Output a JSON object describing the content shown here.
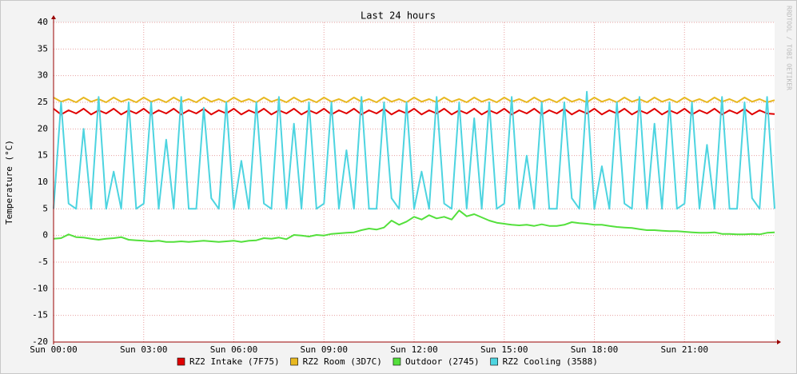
{
  "chart_data": {
    "type": "line",
    "title": "Last 24 hours",
    "y_label": "Temperature (°C)",
    "watermark": "RRDTOOL / TOBI OETIKER",
    "x": [
      0,
      0.25,
      0.5,
      0.75,
      1,
      1.25,
      1.5,
      1.75,
      2,
      2.25,
      2.5,
      2.75,
      3,
      3.25,
      3.5,
      3.75,
      4,
      4.25,
      4.5,
      4.75,
      5,
      5.25,
      5.5,
      5.75,
      6,
      6.25,
      6.5,
      6.75,
      7,
      7.25,
      7.5,
      7.75,
      8,
      8.25,
      8.5,
      8.75,
      9,
      9.25,
      9.5,
      9.75,
      10,
      10.25,
      10.5,
      10.75,
      11,
      11.25,
      11.5,
      11.75,
      12,
      12.25,
      12.5,
      12.75,
      13,
      13.25,
      13.5,
      13.75,
      14,
      14.25,
      14.5,
      14.75,
      15,
      15.25,
      15.5,
      15.75,
      16,
      16.25,
      16.5,
      16.75,
      17,
      17.25,
      17.5,
      17.75,
      18,
      18.25,
      18.5,
      18.75,
      19,
      19.25,
      19.5,
      19.75,
      20,
      20.25,
      20.5,
      20.75,
      21,
      21.25,
      21.5,
      21.75,
      22,
      22.25,
      22.5,
      22.75,
      23,
      23.25,
      23.5,
      23.75,
      24
    ],
    "series": [
      {
        "name": "RZ2 Intake (7F75)",
        "color": "#e00000",
        "values": [
          23.8,
          22.7,
          23.5,
          22.9,
          23.8,
          22.7,
          23.5,
          22.9,
          23.8,
          22.7,
          23.5,
          22.9,
          23.8,
          22.7,
          23.5,
          22.9,
          23.8,
          22.7,
          23.5,
          22.9,
          23.8,
          22.7,
          23.5,
          22.9,
          23.8,
          22.7,
          23.5,
          22.9,
          23.8,
          22.7,
          23.5,
          22.9,
          23.8,
          22.7,
          23.5,
          22.9,
          23.8,
          22.7,
          23.5,
          22.9,
          23.8,
          22.7,
          23.5,
          22.9,
          23.8,
          22.7,
          23.5,
          22.9,
          23.8,
          22.7,
          23.5,
          22.9,
          23.8,
          22.7,
          23.5,
          22.9,
          23.8,
          22.7,
          23.5,
          22.9,
          23.8,
          22.7,
          23.5,
          22.9,
          23.8,
          22.7,
          23.5,
          22.9,
          23.8,
          22.7,
          23.5,
          22.9,
          23.8,
          22.7,
          23.5,
          22.9,
          23.8,
          22.7,
          23.5,
          22.9,
          23.8,
          22.7,
          23.5,
          22.9,
          23.8,
          22.7,
          23.5,
          22.9,
          23.8,
          22.7,
          23.5,
          22.9,
          23.8,
          22.7,
          23.5,
          22.9,
          22.8
        ]
      },
      {
        "name": "RZ2 Room (3D7C)",
        "color": "#e8b820",
        "values": [
          25.9,
          25.1,
          25.6,
          25.0,
          25.9,
          25.1,
          25.6,
          25.0,
          25.9,
          25.1,
          25.6,
          25.0,
          25.9,
          25.1,
          25.6,
          25.0,
          25.9,
          25.1,
          25.6,
          25.0,
          25.9,
          25.1,
          25.6,
          25.0,
          25.9,
          25.1,
          25.6,
          25.0,
          25.9,
          25.1,
          25.6,
          25.0,
          25.9,
          25.1,
          25.6,
          25.0,
          25.9,
          25.1,
          25.6,
          25.0,
          25.9,
          25.1,
          25.6,
          25.0,
          25.9,
          25.1,
          25.6,
          25.0,
          25.9,
          25.1,
          25.6,
          25.0,
          25.9,
          25.1,
          25.6,
          25.0,
          25.9,
          25.1,
          25.6,
          25.0,
          25.9,
          25.1,
          25.6,
          25.0,
          25.9,
          25.1,
          25.6,
          25.0,
          25.9,
          25.1,
          25.6,
          25.0,
          25.9,
          25.1,
          25.6,
          25.0,
          25.9,
          25.1,
          25.6,
          25.0,
          25.9,
          25.1,
          25.6,
          25.0,
          25.9,
          25.1,
          25.6,
          25.0,
          25.9,
          25.1,
          25.6,
          25.0,
          25.9,
          25.1,
          25.6,
          25.0,
          25.4
        ]
      },
      {
        "name": "Outdoor (2745)",
        "color": "#54e03c",
        "values": [
          -0.6,
          -0.5,
          0.2,
          -0.3,
          -0.4,
          -0.6,
          -0.8,
          -0.6,
          -0.5,
          -0.3,
          -0.8,
          -0.9,
          -1.0,
          -1.1,
          -1.0,
          -1.2,
          -1.2,
          -1.1,
          -1.2,
          -1.1,
          -1.0,
          -1.1,
          -1.2,
          -1.1,
          -1.0,
          -1.2,
          -1.0,
          -0.9,
          -0.5,
          -0.6,
          -0.4,
          -0.7,
          0.1,
          0.0,
          -0.2,
          0.1,
          0.0,
          0.3,
          0.4,
          0.5,
          0.6,
          1.0,
          1.3,
          1.1,
          1.5,
          2.8,
          2.0,
          2.6,
          3.5,
          3.0,
          3.8,
          3.2,
          3.5,
          3.0,
          4.7,
          3.6,
          4.0,
          3.4,
          2.8,
          2.4,
          2.2,
          2.0,
          1.9,
          2.0,
          1.8,
          2.1,
          1.8,
          1.8,
          2.0,
          2.5,
          2.3,
          2.2,
          2.0,
          2.0,
          1.8,
          1.6,
          1.5,
          1.4,
          1.2,
          1.0,
          1.0,
          0.9,
          0.8,
          0.8,
          0.7,
          0.6,
          0.5,
          0.5,
          0.6,
          0.3,
          0.3,
          0.2,
          0.2,
          0.3,
          0.2,
          0.5,
          0.6
        ]
      },
      {
        "name": "RZ2 Cooling (3588)",
        "color": "#4dd4e0",
        "values": [
          5,
          25,
          6,
          5,
          20,
          5,
          26,
          5,
          12,
          5,
          25,
          5,
          6,
          25,
          5,
          18,
          5,
          26,
          5,
          5,
          24,
          7,
          5,
          25,
          5,
          14,
          5,
          25,
          6,
          5,
          26,
          5,
          21,
          5,
          25,
          5,
          6,
          25,
          5,
          16,
          5,
          26,
          5,
          5,
          25,
          7,
          5,
          25,
          5,
          12,
          5,
          26,
          6,
          5,
          25,
          5,
          22,
          5,
          25,
          5,
          6,
          26,
          5,
          15,
          5,
          25,
          5,
          5,
          25,
          7,
          5,
          27,
          5,
          13,
          5,
          25,
          6,
          5,
          26,
          5,
          21,
          5,
          25,
          5,
          6,
          25,
          5,
          17,
          5,
          26,
          5,
          5,
          25,
          7,
          5,
          26,
          5
        ]
      }
    ],
    "xlim": [
      0,
      24
    ],
    "xticks": [
      {
        "value": 0,
        "label": "Sun 00:00"
      },
      {
        "value": 3,
        "label": "Sun 03:00"
      },
      {
        "value": 6,
        "label": "Sun 06:00"
      },
      {
        "value": 9,
        "label": "Sun 09:00"
      },
      {
        "value": 12,
        "label": "Sun 12:00"
      },
      {
        "value": 15,
        "label": "Sun 15:00"
      },
      {
        "value": 18,
        "label": "Sun 18:00"
      },
      {
        "value": 21,
        "label": "Sun 21:00"
      }
    ],
    "ylim": [
      -20,
      40
    ],
    "yticks": [
      -20,
      -15,
      -10,
      -5,
      0,
      5,
      10,
      15,
      20,
      25,
      30,
      35,
      40
    ],
    "grid": true
  }
}
